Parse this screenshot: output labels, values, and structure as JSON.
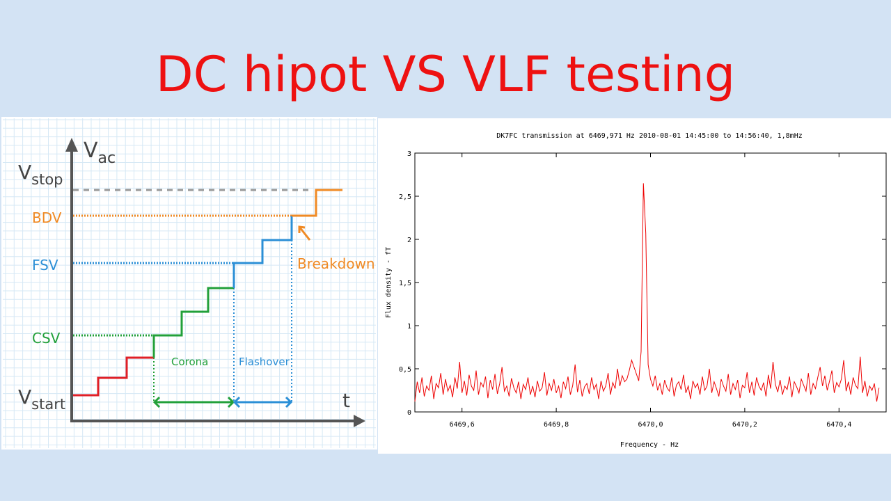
{
  "slide": {
    "title": "DC hipot VS VLF testing"
  },
  "diagram": {
    "y_axis_label": "V",
    "y_axis_sub": "ac",
    "x_axis_label": "t",
    "levels": [
      {
        "main": "V",
        "sub": "stop",
        "color": "#888888"
      },
      {
        "main": "BDV",
        "color": "#f08a24"
      },
      {
        "main": "FSV",
        "color": "#2b8fd6"
      },
      {
        "main": "CSV",
        "color": "#22a03a"
      },
      {
        "main": "V",
        "sub": "start",
        "color": "#444444"
      }
    ],
    "annotations": {
      "breakdown": "Breakdown",
      "corona": "Corona",
      "flashover": "Flashover"
    },
    "colors": {
      "start": "#e01f26",
      "corona": "#22a03a",
      "flashover": "#2b8fd6",
      "breakdown": "#f08a24",
      "axis": "#555555",
      "grid": "#cfe3f2"
    }
  },
  "chart_data": {
    "type": "line",
    "title": "DK7FC transmission at 6469,971 Hz 2010-08-01 14:45:00 to 14:56:40, 1,8mHz",
    "xlabel": "Frequency - Hz",
    "ylabel": "Flux density - fT",
    "xlim": [
      6469.5,
      6470.5
    ],
    "ylim": [
      0,
      3
    ],
    "xticks": [
      "6469,6",
      "6469,8",
      "6470,0",
      "6470,2",
      "6470,4"
    ],
    "xtick_values": [
      6469.6,
      6469.8,
      6470.0,
      6470.2,
      6470.4
    ],
    "yticks": [
      "0",
      "0,5",
      "1",
      "1,5",
      "2",
      "2,5",
      "3"
    ],
    "ytick_values": [
      0,
      0.5,
      1,
      1.5,
      2,
      2.5,
      3
    ],
    "grid": false,
    "series": [
      {
        "color": "#ee0000",
        "x_start": 6469.5,
        "x_step": 0.005,
        "values": [
          0.12,
          0.35,
          0.22,
          0.4,
          0.18,
          0.3,
          0.25,
          0.42,
          0.15,
          0.33,
          0.28,
          0.45,
          0.2,
          0.38,
          0.24,
          0.31,
          0.17,
          0.4,
          0.27,
          0.58,
          0.22,
          0.36,
          0.19,
          0.43,
          0.3,
          0.25,
          0.48,
          0.2,
          0.34,
          0.29,
          0.41,
          0.16,
          0.37,
          0.26,
          0.44,
          0.21,
          0.33,
          0.52,
          0.24,
          0.3,
          0.18,
          0.39,
          0.28,
          0.22,
          0.35,
          0.15,
          0.32,
          0.26,
          0.4,
          0.2,
          0.3,
          0.17,
          0.36,
          0.24,
          0.28,
          0.46,
          0.19,
          0.33,
          0.25,
          0.38,
          0.22,
          0.3,
          0.16,
          0.35,
          0.27,
          0.41,
          0.2,
          0.31,
          0.55,
          0.23,
          0.37,
          0.18,
          0.29,
          0.33,
          0.21,
          0.4,
          0.26,
          0.32,
          0.15,
          0.36,
          0.24,
          0.3,
          0.45,
          0.2,
          0.34,
          0.27,
          0.5,
          0.3,
          0.42,
          0.35,
          0.38,
          0.48,
          0.6,
          0.52,
          0.44,
          0.36,
          0.7,
          2.65,
          2.07,
          0.55,
          0.38,
          0.3,
          0.42,
          0.25,
          0.33,
          0.2,
          0.37,
          0.28,
          0.24,
          0.4,
          0.18,
          0.31,
          0.35,
          0.26,
          0.43,
          0.22,
          0.3,
          0.15,
          0.36,
          0.28,
          0.33,
          0.2,
          0.41,
          0.25,
          0.3,
          0.5,
          0.22,
          0.35,
          0.27,
          0.18,
          0.38,
          0.3,
          0.24,
          0.44,
          0.2,
          0.33,
          0.26,
          0.37,
          0.16,
          0.31,
          0.28,
          0.46,
          0.22,
          0.35,
          0.19,
          0.4,
          0.3,
          0.25,
          0.34,
          0.18,
          0.43,
          0.27,
          0.58,
          0.32,
          0.23,
          0.37,
          0.2,
          0.3,
          0.26,
          0.41,
          0.17,
          0.35,
          0.29,
          0.22,
          0.38,
          0.31,
          0.24,
          0.45,
          0.2,
          0.33,
          0.27,
          0.4,
          0.52,
          0.3,
          0.42,
          0.25,
          0.36,
          0.48,
          0.22,
          0.34,
          0.29,
          0.38,
          0.6,
          0.24,
          0.35,
          0.2,
          0.4,
          0.31,
          0.27,
          0.64,
          0.22,
          0.36,
          0.18,
          0.3,
          0.25,
          0.33,
          0.12,
          0.28
        ]
      }
    ]
  }
}
